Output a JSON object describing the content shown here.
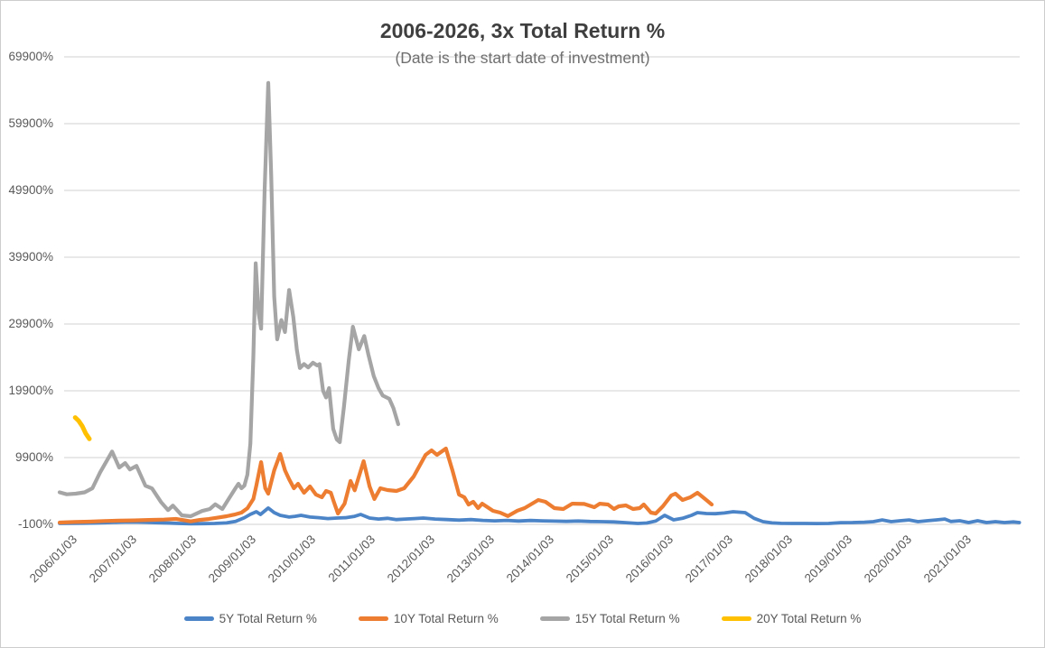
{
  "chart_data": {
    "type": "line",
    "title": "2006-2026, 3x Total Return %",
    "subtitle": "(Date is the start date of investment)",
    "xlabel": "",
    "ylabel": "",
    "ylim": [
      -100,
      69900
    ],
    "y_tick_interval": 10000,
    "grid": "horizontal",
    "gridline_color": "#D9D9D9",
    "axis_text_color": "#595959",
    "title_color": "#3F3F3F",
    "subtitle_color": "#6F6F6F",
    "legend_position": "bottom",
    "y_ticks": [
      {
        "label": "-100%",
        "value": -100
      },
      {
        "label": "9900%",
        "value": 9900
      },
      {
        "label": "19900%",
        "value": 19900
      },
      {
        "label": "29900%",
        "value": 29900
      },
      {
        "label": "39900%",
        "value": 39900
      },
      {
        "label": "49900%",
        "value": 49900
      },
      {
        "label": "59900%",
        "value": 59900
      },
      {
        "label": "69900%",
        "value": 69900
      }
    ],
    "x_ticks": [
      {
        "label": "2006/01/03",
        "year": 2006
      },
      {
        "label": "2007/01/03",
        "year": 2007
      },
      {
        "label": "2008/01/03",
        "year": 2008
      },
      {
        "label": "2009/01/03",
        "year": 2009
      },
      {
        "label": "2010/01/03",
        "year": 2010
      },
      {
        "label": "2011/01/03",
        "year": 2011
      },
      {
        "label": "2012/01/03",
        "year": 2012
      },
      {
        "label": "2013/01/03",
        "year": 2013
      },
      {
        "label": "2014/01/03",
        "year": 2014
      },
      {
        "label": "2015/01/03",
        "year": 2015
      },
      {
        "label": "2016/01/03",
        "year": 2016
      },
      {
        "label": "2017/01/03",
        "year": 2017
      },
      {
        "label": "2018/01/03",
        "year": 2018
      },
      {
        "label": "2019/01/03",
        "year": 2019
      },
      {
        "label": "2020/01/03",
        "year": 2020
      },
      {
        "label": "2021/01/03",
        "year": 2021
      }
    ],
    "series": [
      {
        "id": "5y",
        "name": "5Y Total Return %",
        "color": "#4C84C8",
        "width": 3.8,
        "points": [
          [
            2006.0,
            30
          ],
          [
            2006.2,
            60
          ],
          [
            2006.4,
            80
          ],
          [
            2006.6,
            100
          ],
          [
            2006.8,
            150
          ],
          [
            2007.0,
            220
          ],
          [
            2007.2,
            260
          ],
          [
            2007.4,
            230
          ],
          [
            2007.6,
            160
          ],
          [
            2007.8,
            100
          ],
          [
            2008.0,
            40
          ],
          [
            2008.2,
            -20
          ],
          [
            2008.4,
            10
          ],
          [
            2008.6,
            40
          ],
          [
            2008.8,
            120
          ],
          [
            2008.95,
            350
          ],
          [
            2009.1,
            900
          ],
          [
            2009.2,
            1400
          ],
          [
            2009.3,
            1790
          ],
          [
            2009.37,
            1390
          ],
          [
            2009.5,
            2350
          ],
          [
            2009.6,
            1660
          ],
          [
            2009.7,
            1250
          ],
          [
            2009.85,
            1000
          ],
          [
            2009.95,
            1100
          ],
          [
            2010.05,
            1250
          ],
          [
            2010.2,
            1000
          ],
          [
            2010.35,
            900
          ],
          [
            2010.5,
            760
          ],
          [
            2010.65,
            840
          ],
          [
            2010.8,
            900
          ],
          [
            2010.95,
            1100
          ],
          [
            2011.05,
            1390
          ],
          [
            2011.2,
            840
          ],
          [
            2011.35,
            700
          ],
          [
            2011.5,
            800
          ],
          [
            2011.65,
            620
          ],
          [
            2011.8,
            700
          ],
          [
            2011.95,
            760
          ],
          [
            2012.1,
            840
          ],
          [
            2012.3,
            700
          ],
          [
            2012.5,
            620
          ],
          [
            2012.7,
            540
          ],
          [
            2012.9,
            620
          ],
          [
            2013.1,
            500
          ],
          [
            2013.3,
            430
          ],
          [
            2013.5,
            500
          ],
          [
            2013.7,
            400
          ],
          [
            2013.9,
            480
          ],
          [
            2014.1,
            430
          ],
          [
            2014.3,
            380
          ],
          [
            2014.5,
            350
          ],
          [
            2014.7,
            400
          ],
          [
            2014.9,
            330
          ],
          [
            2015.1,
            300
          ],
          [
            2015.3,
            260
          ],
          [
            2015.5,
            160
          ],
          [
            2015.7,
            40
          ],
          [
            2015.85,
            100
          ],
          [
            2016.0,
            400
          ],
          [
            2016.15,
            1250
          ],
          [
            2016.3,
            570
          ],
          [
            2016.45,
            800
          ],
          [
            2016.6,
            1250
          ],
          [
            2016.7,
            1660
          ],
          [
            2016.85,
            1520
          ],
          [
            2017.0,
            1500
          ],
          [
            2017.15,
            1600
          ],
          [
            2017.3,
            1790
          ],
          [
            2017.5,
            1660
          ],
          [
            2017.65,
            800
          ],
          [
            2017.8,
            300
          ],
          [
            2017.95,
            120
          ],
          [
            2018.1,
            50
          ],
          [
            2018.3,
            30
          ],
          [
            2018.5,
            30
          ],
          [
            2018.7,
            20
          ],
          [
            2018.9,
            40
          ],
          [
            2019.1,
            150
          ],
          [
            2019.3,
            170
          ],
          [
            2019.5,
            220
          ],
          [
            2019.65,
            300
          ],
          [
            2019.8,
            560
          ],
          [
            2019.95,
            300
          ],
          [
            2020.1,
            440
          ],
          [
            2020.25,
            560
          ],
          [
            2020.4,
            300
          ],
          [
            2020.55,
            440
          ],
          [
            2020.7,
            560
          ],
          [
            2020.85,
            700
          ],
          [
            2020.95,
            330
          ],
          [
            2021.1,
            440
          ],
          [
            2021.25,
            170
          ],
          [
            2021.4,
            440
          ],
          [
            2021.55,
            170
          ],
          [
            2021.7,
            300
          ],
          [
            2021.85,
            170
          ],
          [
            2022.0,
            260
          ],
          [
            2022.1,
            170
          ]
        ]
      },
      {
        "id": "10y",
        "name": "10Y Total Return %",
        "color": "#ED7D31",
        "width": 4.2,
        "points": [
          [
            2006.0,
            170
          ],
          [
            2006.25,
            250
          ],
          [
            2006.5,
            300
          ],
          [
            2006.75,
            400
          ],
          [
            2007.0,
            450
          ],
          [
            2007.25,
            500
          ],
          [
            2007.5,
            560
          ],
          [
            2007.75,
            620
          ],
          [
            2007.95,
            710
          ],
          [
            2008.1,
            500
          ],
          [
            2008.2,
            350
          ],
          [
            2008.35,
            560
          ],
          [
            2008.5,
            700
          ],
          [
            2008.65,
            900
          ],
          [
            2008.8,
            1120
          ],
          [
            2008.95,
            1400
          ],
          [
            2009.05,
            1660
          ],
          [
            2009.15,
            2300
          ],
          [
            2009.25,
            3700
          ],
          [
            2009.3,
            5700
          ],
          [
            2009.38,
            9230
          ],
          [
            2009.45,
            5300
          ],
          [
            2009.5,
            4500
          ],
          [
            2009.6,
            8000
          ],
          [
            2009.7,
            10440
          ],
          [
            2009.78,
            8000
          ],
          [
            2009.85,
            6650
          ],
          [
            2009.93,
            5300
          ],
          [
            2010.0,
            5980
          ],
          [
            2010.1,
            4630
          ],
          [
            2010.2,
            5570
          ],
          [
            2010.3,
            4360
          ],
          [
            2010.4,
            3950
          ],
          [
            2010.47,
            4900
          ],
          [
            2010.55,
            4630
          ],
          [
            2010.6,
            3280
          ],
          [
            2010.67,
            1520
          ],
          [
            2010.78,
            3000
          ],
          [
            2010.88,
            6400
          ],
          [
            2010.95,
            5000
          ],
          [
            2011.1,
            9360
          ],
          [
            2011.2,
            5570
          ],
          [
            2011.28,
            3700
          ],
          [
            2011.38,
            5300
          ],
          [
            2011.5,
            5040
          ],
          [
            2011.65,
            4900
          ],
          [
            2011.78,
            5300
          ],
          [
            2011.94,
            7060
          ],
          [
            2012.14,
            10300
          ],
          [
            2012.24,
            10980
          ],
          [
            2012.33,
            10300
          ],
          [
            2012.48,
            11250
          ],
          [
            2012.59,
            8000
          ],
          [
            2012.7,
            4360
          ],
          [
            2012.79,
            3950
          ],
          [
            2012.86,
            2870
          ],
          [
            2012.94,
            3280
          ],
          [
            2013.02,
            2330
          ],
          [
            2013.09,
            3000
          ],
          [
            2013.27,
            1930
          ],
          [
            2013.39,
            1660
          ],
          [
            2013.52,
            1150
          ],
          [
            2013.68,
            1950
          ],
          [
            2013.8,
            2330
          ],
          [
            2014.03,
            3550
          ],
          [
            2014.15,
            3280
          ],
          [
            2014.3,
            2330
          ],
          [
            2014.45,
            2200
          ],
          [
            2014.6,
            3000
          ],
          [
            2014.8,
            2950
          ],
          [
            2014.97,
            2470
          ],
          [
            2015.06,
            3000
          ],
          [
            2015.2,
            2870
          ],
          [
            2015.3,
            2200
          ],
          [
            2015.38,
            2600
          ],
          [
            2015.5,
            2740
          ],
          [
            2015.62,
            2200
          ],
          [
            2015.73,
            2330
          ],
          [
            2015.8,
            2870
          ],
          [
            2015.92,
            1660
          ],
          [
            2016.0,
            1520
          ],
          [
            2016.12,
            2600
          ],
          [
            2016.26,
            4220
          ],
          [
            2016.33,
            4500
          ],
          [
            2016.45,
            3550
          ],
          [
            2016.58,
            3950
          ],
          [
            2016.7,
            4630
          ],
          [
            2016.83,
            3680
          ],
          [
            2016.94,
            2870
          ]
        ]
      },
      {
        "id": "15y",
        "name": "15Y Total Return %",
        "color": "#A5A5A5",
        "width": 4.2,
        "points": [
          [
            2006.0,
            4700
          ],
          [
            2006.12,
            4400
          ],
          [
            2006.27,
            4500
          ],
          [
            2006.42,
            4700
          ],
          [
            2006.55,
            5300
          ],
          [
            2006.68,
            7700
          ],
          [
            2006.88,
            10800
          ],
          [
            2007.0,
            8400
          ],
          [
            2007.1,
            9070
          ],
          [
            2007.18,
            8120
          ],
          [
            2007.29,
            8660
          ],
          [
            2007.44,
            5680
          ],
          [
            2007.55,
            5280
          ],
          [
            2007.7,
            3250
          ],
          [
            2007.82,
            2030
          ],
          [
            2007.9,
            2710
          ],
          [
            2008.05,
            1250
          ],
          [
            2008.2,
            1120
          ],
          [
            2008.39,
            1900
          ],
          [
            2008.52,
            2200
          ],
          [
            2008.61,
            2900
          ],
          [
            2008.73,
            2200
          ],
          [
            2008.85,
            3900
          ],
          [
            2008.95,
            5300
          ],
          [
            2009.0,
            5980
          ],
          [
            2009.05,
            5300
          ],
          [
            2009.1,
            5700
          ],
          [
            2009.15,
            7330
          ],
          [
            2009.2,
            12000
          ],
          [
            2009.25,
            25000
          ],
          [
            2009.29,
            39000
          ],
          [
            2009.34,
            31500
          ],
          [
            2009.38,
            29200
          ],
          [
            2009.44,
            50000
          ],
          [
            2009.5,
            66000
          ],
          [
            2009.55,
            52000
          ],
          [
            2009.6,
            34000
          ],
          [
            2009.65,
            27600
          ],
          [
            2009.72,
            30500
          ],
          [
            2009.78,
            28700
          ],
          [
            2009.85,
            35000
          ],
          [
            2009.92,
            31000
          ],
          [
            2009.98,
            26000
          ],
          [
            2010.03,
            23300
          ],
          [
            2010.1,
            23900
          ],
          [
            2010.17,
            23400
          ],
          [
            2010.25,
            24100
          ],
          [
            2010.32,
            23700
          ],
          [
            2010.36,
            23900
          ],
          [
            2010.42,
            19900
          ],
          [
            2010.47,
            18900
          ],
          [
            2010.52,
            20300
          ],
          [
            2010.59,
            14200
          ],
          [
            2010.65,
            12600
          ],
          [
            2010.7,
            12200
          ],
          [
            2010.77,
            17500
          ],
          [
            2010.85,
            24400
          ],
          [
            2010.92,
            29500
          ],
          [
            2011.02,
            26100
          ],
          [
            2011.11,
            28100
          ],
          [
            2011.18,
            25300
          ],
          [
            2011.27,
            22100
          ],
          [
            2011.35,
            20300
          ],
          [
            2011.42,
            19200
          ],
          [
            2011.53,
            18700
          ],
          [
            2011.6,
            17300
          ],
          [
            2011.68,
            14900
          ]
        ]
      },
      {
        "id": "20y",
        "name": "20Y Total Return %",
        "color": "#FFC000",
        "width": 5,
        "points": [
          [
            2006.26,
            15900
          ],
          [
            2006.32,
            15400
          ],
          [
            2006.38,
            14600
          ],
          [
            2006.44,
            13500
          ],
          [
            2006.5,
            12700
          ]
        ]
      }
    ]
  }
}
